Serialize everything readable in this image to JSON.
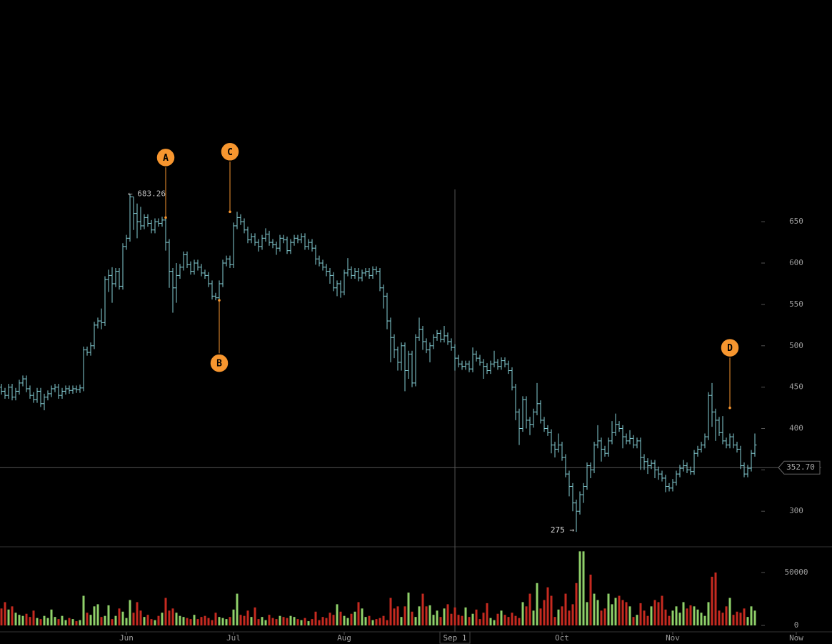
{
  "chart_data": {
    "type": "ohlc",
    "xlim": [
      -0.4,
      232.6
    ],
    "xticks": [
      {
        "value": 35,
        "label": "Jun"
      },
      {
        "value": 65,
        "label": "Jul"
      },
      {
        "value": 96,
        "label": "Aug"
      },
      {
        "value": 157,
        "label": "Oct"
      },
      {
        "value": 188,
        "label": "Nov"
      },
      {
        "value": 222.6,
        "label": "Now"
      }
    ],
    "ylim": [
      257,
      918
    ],
    "yticks": [
      300,
      350,
      400,
      450,
      500,
      550,
      600,
      650
    ],
    "color": "#86cfd6",
    "open": [
      450,
      445,
      440,
      450,
      438,
      445,
      455,
      460,
      448,
      440,
      435,
      445,
      430,
      438,
      442,
      448,
      450,
      440,
      445,
      448,
      446,
      448,
      447,
      449,
      495,
      492,
      500,
      525,
      530,
      528,
      580,
      585,
      575,
      590,
      572,
      620,
      630,
      680,
      660,
      650,
      645,
      655,
      648,
      640,
      650,
      648,
      652,
      625,
      590,
      570,
      585,
      595,
      610,
      598,
      590,
      600,
      595,
      588,
      585,
      575,
      560,
      558,
      575,
      600,
      605,
      598,
      645,
      655,
      650,
      640,
      628,
      632,
      625,
      620,
      630,
      635,
      625,
      622,
      618,
      630,
      628,
      615,
      625,
      630,
      628,
      632,
      620,
      625,
      618,
      605,
      600,
      595,
      590,
      585,
      570,
      575,
      565,
      588,
      592,
      585,
      590,
      582,
      588,
      590,
      585,
      592,
      590,
      570,
      560,
      530,
      510,
      495,
      480,
      500,
      470,
      490,
      455,
      510,
      520,
      505,
      495,
      500,
      510,
      515,
      508,
      512,
      505,
      498,
      485,
      478,
      475,
      478,
      472,
      490,
      485,
      480,
      475,
      470,
      478,
      480,
      475,
      482,
      478,
      470,
      450,
      420,
      400,
      435,
      410,
      405,
      420,
      430,
      410,
      400,
      395,
      380,
      375,
      380,
      365,
      345,
      330,
      310,
      300,
      320,
      330,
      355,
      350,
      380,
      385,
      375,
      370,
      385,
      395,
      405,
      400,
      390,
      385,
      388,
      380,
      385,
      365,
      360,
      355,
      358,
      350,
      345,
      340,
      330,
      328,
      335,
      345,
      352,
      355,
      350,
      348,
      370,
      375,
      380,
      390,
      440,
      420,
      410,
      395,
      385,
      380,
      390,
      380,
      375,
      355,
      345,
      352,
      370
    ],
    "high": [
      454,
      449,
      454,
      454,
      449,
      459,
      464,
      464,
      452,
      444,
      449,
      449,
      442,
      446,
      452,
      454,
      454,
      449,
      452,
      452,
      452,
      452,
      453,
      499,
      499,
      504,
      529,
      534,
      545,
      584,
      592,
      595,
      594,
      594,
      624,
      634,
      683.26,
      680,
      672,
      668,
      659,
      659,
      652,
      654,
      654,
      656,
      656,
      629,
      594,
      600,
      599,
      614,
      614,
      602,
      604,
      604,
      599,
      592,
      589,
      579,
      564,
      579,
      604,
      609,
      609,
      649,
      662,
      659,
      654,
      644,
      636,
      636,
      629,
      634,
      642,
      639,
      629,
      626,
      634,
      634,
      632,
      629,
      634,
      634,
      636,
      636,
      629,
      629,
      622,
      609,
      604,
      599,
      594,
      589,
      579,
      579,
      592,
      606,
      596,
      594,
      594,
      592,
      594,
      594,
      596,
      596,
      594,
      574,
      564,
      534,
      514,
      499,
      504,
      504,
      494,
      494,
      514,
      534,
      524,
      509,
      504,
      514,
      519,
      519,
      524,
      516,
      509,
      502,
      489,
      482,
      482,
      482,
      498,
      494,
      489,
      484,
      479,
      482,
      494,
      484,
      486,
      486,
      482,
      474,
      454,
      424,
      439,
      439,
      414,
      424,
      455,
      434,
      414,
      404,
      399,
      384,
      394,
      384,
      369,
      349,
      334,
      314,
      324,
      334,
      359,
      359,
      384,
      404,
      389,
      379,
      389,
      409,
      418,
      409,
      404,
      394,
      398,
      392,
      389,
      389,
      369,
      364,
      362,
      362,
      354,
      349,
      344,
      334,
      339,
      349,
      356,
      362,
      359,
      354,
      374,
      379,
      384,
      394,
      444,
      455,
      424,
      414,
      415,
      389,
      394,
      394,
      384,
      379,
      359,
      356,
      374,
      394
    ],
    "low": [
      441,
      436,
      436,
      434,
      434,
      441,
      451,
      444,
      436,
      431,
      431,
      426,
      422,
      434,
      438,
      444,
      436,
      436,
      441,
      442,
      442,
      443,
      443,
      445,
      488,
      488,
      496,
      521,
      520,
      524,
      565,
      552,
      571,
      568,
      568,
      616,
      626,
      640,
      630,
      640,
      641,
      644,
      636,
      636,
      644,
      644,
      615,
      570,
      540,
      552,
      581,
      591,
      594,
      586,
      586,
      591,
      584,
      581,
      571,
      556,
      555,
      554,
      571,
      596,
      594,
      594,
      641,
      646,
      636,
      624,
      624,
      621,
      614,
      616,
      626,
      621,
      618,
      610,
      614,
      624,
      611,
      611,
      621,
      624,
      624,
      616,
      616,
      614,
      598,
      596,
      591,
      584,
      575,
      566,
      560,
      558,
      561,
      584,
      581,
      581,
      578,
      578,
      584,
      581,
      581,
      586,
      566,
      545,
      520,
      480,
      485,
      470,
      470,
      445,
      460,
      450,
      451,
      506,
      495,
      491,
      480,
      496,
      506,
      504,
      504,
      501,
      494,
      470,
      474,
      471,
      471,
      468,
      468,
      481,
      476,
      460,
      466,
      466,
      474,
      471,
      471,
      474,
      466,
      446,
      410,
      380,
      396,
      400,
      392,
      401,
      416,
      406,
      396,
      391,
      370,
      365,
      371,
      361,
      341,
      318,
      300,
      275,
      296,
      310,
      326,
      340,
      346,
      376,
      360,
      366,
      366,
      381,
      391,
      396,
      376,
      381,
      381,
      376,
      376,
      350,
      350,
      345,
      351,
      340,
      338,
      336,
      323,
      324,
      324,
      331,
      341,
      348,
      346,
      344,
      344,
      366,
      371,
      376,
      386,
      402,
      385,
      391,
      381,
      376,
      376,
      376,
      371,
      351,
      341,
      341,
      348,
      366
    ],
    "close": [
      445,
      440,
      450,
      438,
      445,
      455,
      460,
      448,
      440,
      435,
      445,
      430,
      438,
      442,
      448,
      450,
      440,
      445,
      448,
      446,
      448,
      447,
      449,
      495,
      492,
      500,
      525,
      530,
      528,
      580,
      585,
      575,
      590,
      572,
      620,
      630,
      680,
      660,
      650,
      645,
      655,
      648,
      640,
      650,
      648,
      652,
      625,
      590,
      570,
      585,
      595,
      610,
      598,
      590,
      600,
      595,
      588,
      585,
      575,
      560,
      558,
      575,
      600,
      605,
      598,
      645,
      655,
      650,
      640,
      628,
      632,
      625,
      620,
      630,
      635,
      625,
      622,
      618,
      630,
      628,
      615,
      625,
      630,
      628,
      632,
      620,
      625,
      618,
      605,
      600,
      595,
      590,
      585,
      570,
      575,
      565,
      588,
      592,
      585,
      590,
      582,
      588,
      590,
      585,
      592,
      590,
      570,
      560,
      530,
      510,
      495,
      480,
      500,
      470,
      490,
      455,
      510,
      520,
      505,
      495,
      500,
      510,
      515,
      508,
      512,
      505,
      498,
      485,
      478,
      475,
      478,
      472,
      490,
      485,
      480,
      475,
      470,
      478,
      480,
      475,
      482,
      478,
      470,
      450,
      420,
      400,
      435,
      410,
      405,
      420,
      430,
      410,
      400,
      395,
      380,
      375,
      380,
      365,
      345,
      330,
      310,
      300,
      320,
      330,
      355,
      350,
      380,
      385,
      375,
      370,
      385,
      395,
      405,
      400,
      390,
      385,
      388,
      380,
      385,
      365,
      360,
      355,
      358,
      350,
      345,
      340,
      330,
      328,
      335,
      345,
      352,
      355,
      350,
      348,
      370,
      375,
      380,
      390,
      440,
      420,
      410,
      395,
      385,
      380,
      390,
      380,
      375,
      355,
      345,
      352,
      370,
      380
    ],
    "volume": {
      "ylim": [
        0,
        74300
      ],
      "yticks": [
        0,
        50000
      ],
      "up_color": "#8fd16a",
      "down_color": "#c62a20",
      "values": [
        16000,
        22000,
        15000,
        18000,
        12000,
        10000,
        9000,
        11000,
        8000,
        14000,
        7000,
        6000,
        9000,
        7000,
        15000,
        8000,
        6000,
        9000,
        5000,
        7000,
        6000,
        4000,
        5000,
        28000,
        12000,
        10000,
        18000,
        20000,
        8000,
        9000,
        19000,
        6000,
        9000,
        16000,
        13000,
        7000,
        24000,
        12000,
        22000,
        14000,
        8000,
        10000,
        6000,
        5000,
        9000,
        12000,
        26000,
        14000,
        16000,
        12000,
        9000,
        8000,
        7000,
        6000,
        10000,
        6000,
        8000,
        9000,
        7000,
        5000,
        12000,
        8000,
        7000,
        6000,
        8000,
        15000,
        30000,
        10000,
        9000,
        14000,
        8000,
        17000,
        6000,
        8000,
        5000,
        10000,
        7000,
        6000,
        9000,
        8000,
        7000,
        9000,
        8000,
        6000,
        5000,
        7000,
        4000,
        6000,
        13000,
        5000,
        8000,
        7000,
        12000,
        10000,
        20000,
        13000,
        9000,
        7000,
        11000,
        13000,
        22000,
        16000,
        8000,
        9000,
        5000,
        6000,
        7000,
        9000,
        5000,
        26000,
        16000,
        18000,
        8000,
        18000,
        31000,
        13000,
        8000,
        18000,
        30000,
        18000,
        19000,
        10000,
        14000,
        8000,
        16000,
        20000,
        11000,
        17000,
        10000,
        9000,
        17000,
        8000,
        11000,
        15000,
        6000,
        12000,
        21000,
        7000,
        5000,
        11000,
        14000,
        10000,
        8000,
        12000,
        9000,
        7000,
        22000,
        18000,
        30000,
        14000,
        40000,
        16000,
        24000,
        36000,
        28000,
        8000,
        15000,
        18000,
        30000,
        14000,
        20000,
        40000,
        70000,
        70000,
        22000,
        48000,
        30000,
        24000,
        14000,
        16000,
        30000,
        20000,
        26000,
        28000,
        24000,
        22000,
        18000,
        8000,
        10000,
        21000,
        14000,
        9000,
        18000,
        24000,
        22000,
        28000,
        15000,
        9000,
        14000,
        18000,
        12000,
        22000,
        16000,
        19000,
        18000,
        15000,
        12000,
        9000,
        22000,
        46000,
        50000,
        14000,
        12000,
        18000,
        26000,
        10000,
        13000,
        12000,
        16000,
        8000,
        18000,
        14000
      ]
    },
    "high_label": {
      "index": 36,
      "value": 683.26,
      "label": "← 683.26"
    },
    "low_label": {
      "index": 161,
      "value": 275,
      "label": "275 →"
    },
    "markers": [
      {
        "label": "A",
        "index": 46,
        "value": 655,
        "side": "above"
      },
      {
        "label": "B",
        "index": 61,
        "value": 555,
        "side": "below"
      },
      {
        "label": "C",
        "index": 64,
        "value": 662,
        "side": "above"
      },
      {
        "label": "D",
        "index": 204,
        "value": 425,
        "side": "above"
      }
    ],
    "marker_color": "#f7962f",
    "crosshair": {
      "x": {
        "value": 127,
        "label": "Sep 1"
      },
      "y": {
        "value": 352.7,
        "label": "352.70"
      }
    }
  }
}
